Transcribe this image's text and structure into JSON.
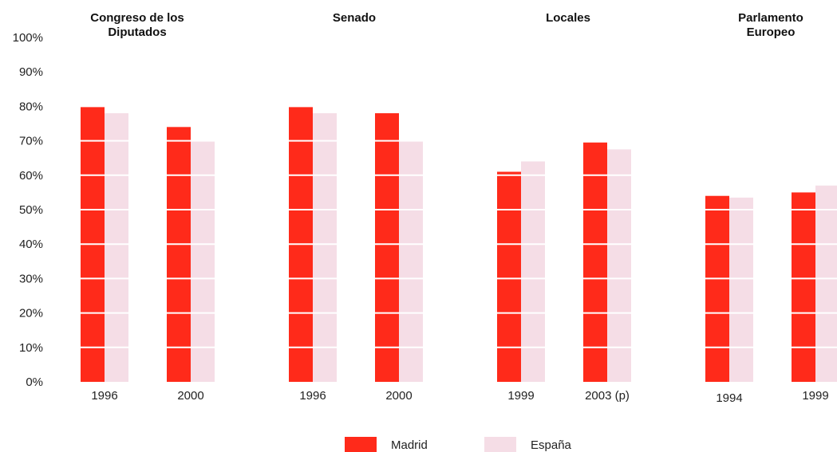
{
  "chart_data": {
    "type": "bar",
    "title": "",
    "xlabel": "",
    "ylabel": "",
    "ylim": [
      0,
      100
    ],
    "y_ticks": [
      "0%",
      "10%",
      "20%",
      "30%",
      "40%",
      "50%",
      "60%",
      "70%",
      "80%",
      "90%",
      "100%"
    ],
    "grid": false,
    "legend_position": "bottom-center",
    "colors": {
      "Madrid": "#ff2a1a",
      "España": "#f5dde6"
    },
    "groups": [
      {
        "title_lines": [
          "Congreso de los",
          "Diputados"
        ],
        "categories": [
          "1996",
          "2000"
        ],
        "series": [
          {
            "name": "Madrid",
            "values": [
              80,
              74
            ]
          },
          {
            "name": "España",
            "values": [
              78,
              70
            ]
          }
        ]
      },
      {
        "title_lines": [
          "Senado"
        ],
        "categories": [
          "1996",
          "2000"
        ],
        "series": [
          {
            "name": "Madrid",
            "values": [
              80,
              78
            ]
          },
          {
            "name": "España",
            "values": [
              78,
              70
            ]
          }
        ]
      },
      {
        "title_lines": [
          "Locales"
        ],
        "categories": [
          "1999",
          "2003 (p)"
        ],
        "series": [
          {
            "name": "Madrid",
            "values": [
              61,
              69.5
            ]
          },
          {
            "name": "España",
            "values": [
              64,
              67.5
            ]
          }
        ]
      },
      {
        "title_lines": [
          "Parlamento",
          "Europeo"
        ],
        "categories": [
          "1994",
          "1999"
        ],
        "series": [
          {
            "name": "Madrid",
            "values": [
              54,
              55
            ]
          },
          {
            "name": "España",
            "values": [
              53.5,
              57
            ]
          }
        ]
      }
    ],
    "legend": [
      "Madrid",
      "España"
    ]
  }
}
